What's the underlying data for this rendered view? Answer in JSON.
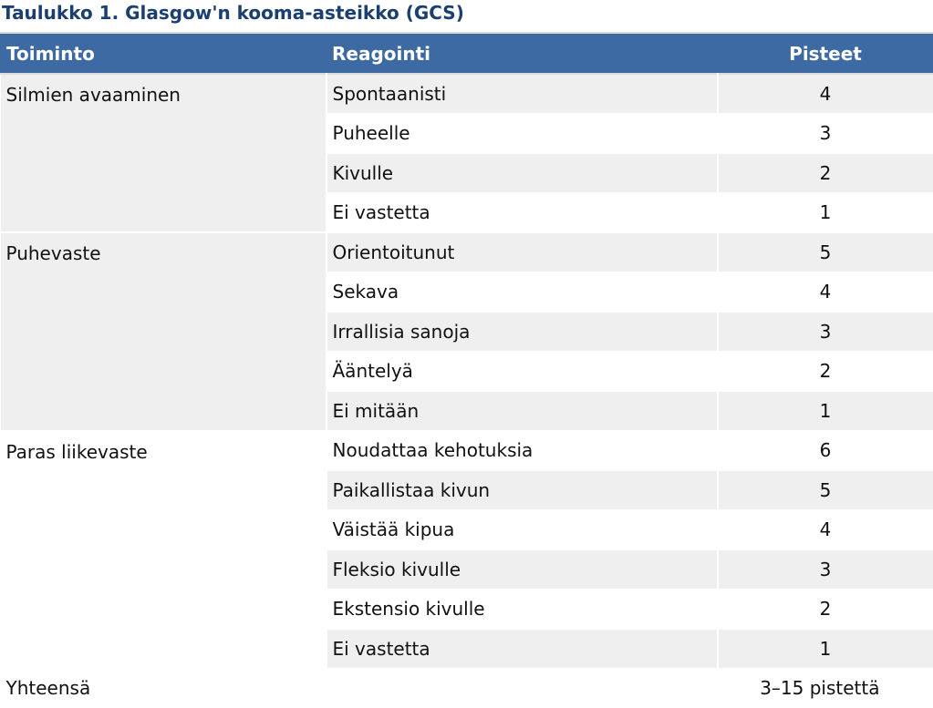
{
  "title": "Taulukko 1. Glasgow'n kooma-asteikko (GCS)",
  "headers": {
    "function": "Toiminto",
    "response": "Reagointi",
    "points": "Pisteet"
  },
  "groups": [
    {
      "name": "Silmien avaaminen",
      "rows": [
        {
          "response": "Spontaanisti",
          "points": "4"
        },
        {
          "response": "Puheelle",
          "points": "3"
        },
        {
          "response": "Kivulle",
          "points": "2"
        },
        {
          "response": "Ei vastetta",
          "points": "1"
        }
      ]
    },
    {
      "name": "Puhevaste",
      "rows": [
        {
          "response": "Orientoitunut",
          "points": "5"
        },
        {
          "response": "Sekava",
          "points": "4"
        },
        {
          "response": "Irrallisia sanoja",
          "points": "3"
        },
        {
          "response": "Ääntelyä",
          "points": "2"
        },
        {
          "response": "Ei mitään",
          "points": "1"
        }
      ]
    },
    {
      "name": "Paras liikevaste",
      "rows": [
        {
          "response": "Noudattaa kehotuksia",
          "points": "6"
        },
        {
          "response": "Paikallistaa kivun",
          "points": "5"
        },
        {
          "response": "Väistää kipua",
          "points": "4"
        },
        {
          "response": "Fleksio kivulle",
          "points": "3"
        },
        {
          "response": "Ekstensio kivulle",
          "points": "2"
        },
        {
          "response": "Ei vastetta",
          "points": "1"
        }
      ]
    }
  ],
  "total": {
    "label": "Yhteensä",
    "value": "3–15 pistettä"
  }
}
